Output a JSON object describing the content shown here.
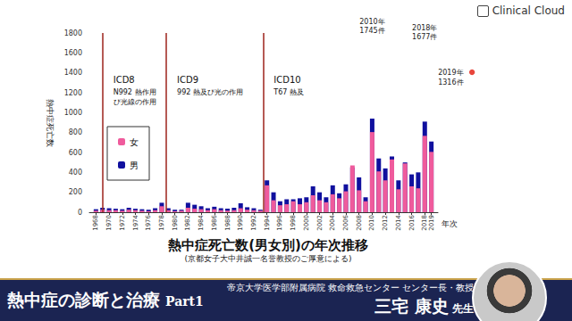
{
  "chart_data": {
    "type": "bar",
    "title": "熱中症死亡数(男女別)の年次推移",
    "subtitle": "(京都女子大中井誠一名誉教授のご厚意による)",
    "x_label": "年次",
    "y_label": "熱中症死亡数",
    "x": [
      1968,
      1969,
      1970,
      1971,
      1972,
      1973,
      1974,
      1975,
      1976,
      1977,
      1978,
      1979,
      1980,
      1981,
      1982,
      1983,
      1984,
      1985,
      1986,
      1987,
      1988,
      1989,
      1990,
      1991,
      1992,
      1993,
      1994,
      1995,
      1996,
      1997,
      1998,
      1999,
      2000,
      2001,
      2002,
      2003,
      2004,
      2005,
      2006,
      2007,
      2008,
      2009,
      2010,
      2011,
      2012,
      2013,
      2014,
      2015,
      2016,
      2017,
      2018,
      2019
    ],
    "xlim": [
      1967,
      2020
    ],
    "xticks": [
      1968,
      1970,
      1972,
      1974,
      1976,
      1978,
      1980,
      1982,
      1984,
      1986,
      1988,
      1990,
      1992,
      1994,
      1996,
      1998,
      2000,
      2002,
      2004,
      2006,
      2008,
      2010,
      2012,
      2014,
      2016,
      2018,
      2019
    ],
    "ylim": [
      0,
      1800
    ],
    "yticks": [
      0,
      200,
      400,
      600,
      800,
      1000,
      1200,
      1400,
      1600,
      1800
    ],
    "stacked": true,
    "grid": false,
    "legend": "upper left",
    "series": [
      {
        "name": "男",
        "color": "#10109e",
        "values": [
          30,
          45,
          40,
          35,
          30,
          45,
          35,
          30,
          25,
          40,
          95,
          40,
          25,
          25,
          95,
          75,
          60,
          40,
          55,
          40,
          35,
          45,
          90,
          50,
          40,
          25,
          320,
          200,
          110,
          130,
          130,
          140,
          150,
          260,
          200,
          150,
          270,
          190,
          280,
          450,
          350,
          150,
          940,
          540,
          440,
          560,
          320,
          500,
          380,
          400,
          910,
          710
        ]
      },
      {
        "name": "女",
        "color": "#ef5b9c",
        "values": [
          15,
          25,
          20,
          20,
          15,
          25,
          20,
          15,
          10,
          20,
          60,
          20,
          10,
          15,
          45,
          35,
          30,
          20,
          30,
          20,
          15,
          20,
          40,
          25,
          20,
          15,
          270,
          120,
          70,
          80,
          110,
          80,
          100,
          170,
          120,
          100,
          180,
          140,
          210,
          470,
          220,
          110,
          805,
          410,
          320,
          530,
          230,
          490,
          260,
          240,
          767,
          606
        ]
      }
    ],
    "periods": [
      {
        "start": 1969,
        "label": "ICD8",
        "lines": [
          "N992 熱作用",
          "び光線の作用"
        ],
        "color": "#a3302a"
      },
      {
        "start": 1978.7,
        "label": "ICD9",
        "lines": [
          "992 熱及び光の作用"
        ],
        "color": "#a3302a"
      },
      {
        "start": 1993.4,
        "label": "ICD10",
        "lines": [
          "T67 熱及"
        ],
        "color": "#a3302a"
      }
    ],
    "annotations": [
      {
        "x": 2010,
        "text": [
          "2010年",
          "1745件"
        ]
      },
      {
        "x": 2018,
        "text": [
          "2018年",
          "1677件"
        ]
      },
      {
        "x": 2019,
        "text": [
          "2019年",
          "1316件"
        ],
        "marker": "dot",
        "color": "#e8463c"
      }
    ]
  },
  "header": {
    "brand": "Clinical Cloud"
  },
  "banner": {
    "title": "熱中症の診断と治療",
    "part": "Part1",
    "affiliation": "帝京大学医学部附属病院 救命救急センター センター長・教授",
    "name": "三宅 康史",
    "honorific": "先生"
  }
}
